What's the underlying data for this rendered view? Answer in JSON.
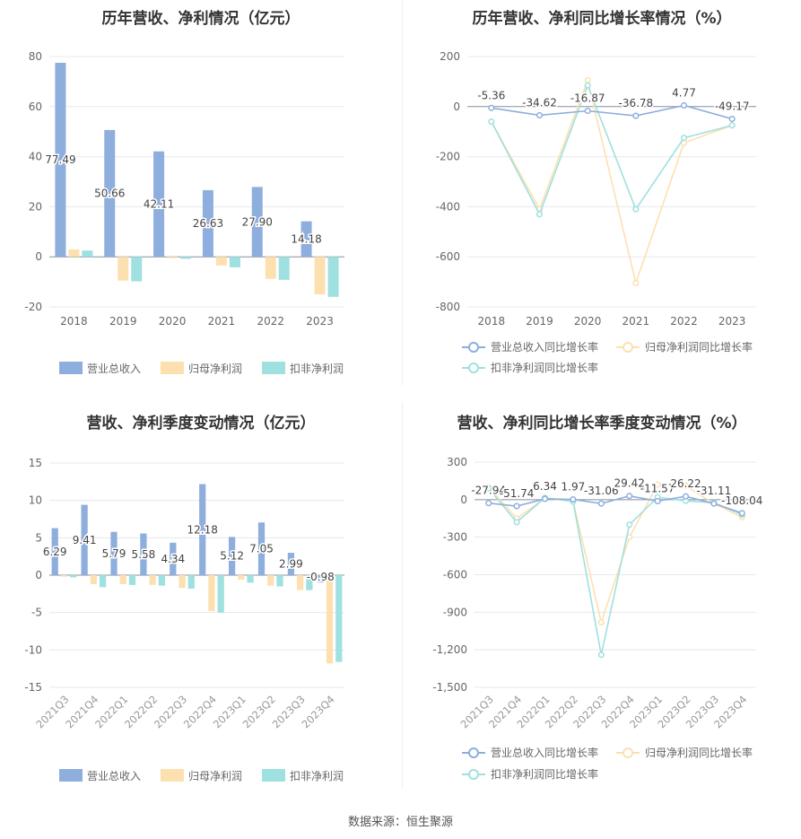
{
  "source": "数据来源：恒生聚源",
  "colors": {
    "rev": "#8eaedd",
    "np": "#fde0b0",
    "dnp": "#9fe0e0",
    "line_rev": "#8eaedd",
    "line_np": "#fde0b0",
    "line_dnp": "#9fe0e0"
  },
  "chart_data": [
    {
      "type": "bar",
      "title": "历年营收、净利情况（亿元）",
      "categories": [
        "2018",
        "2019",
        "2020",
        "2021",
        "2022",
        "2023"
      ],
      "ylim": [
        -20,
        80
      ],
      "yticks": [
        -20,
        0,
        20,
        40,
        60,
        80
      ],
      "series": [
        {
          "name": "营业总收入",
          "values": [
            77.49,
            50.66,
            42.11,
            26.63,
            27.9,
            14.18
          ],
          "labels": [
            "77.49",
            "50.66",
            "42.11",
            "26.63",
            "27.90",
            "14.18"
          ]
        },
        {
          "name": "归母净利润",
          "values": [
            3.0,
            -9.5,
            -0.5,
            -3.5,
            -8.8,
            -15.0
          ]
        },
        {
          "name": "扣非净利润",
          "values": [
            2.5,
            -9.8,
            -0.8,
            -4.2,
            -9.2,
            -16.0
          ]
        }
      ],
      "legend": "bottom",
      "grid": true
    },
    {
      "type": "line",
      "title": "历年营收、净利同比增长率情况（%）",
      "categories": [
        "2018",
        "2019",
        "2020",
        "2021",
        "2022",
        "2023"
      ],
      "ylim": [
        -800,
        200
      ],
      "yticks": [
        -800,
        -600,
        -400,
        -200,
        0,
        200
      ],
      "series": [
        {
          "name": "营业总收入同比增长率",
          "values": [
            -5.36,
            -34.62,
            -16.87,
            -36.78,
            4.77,
            -49.17
          ],
          "labels": [
            "-5.36",
            "-34.62",
            "-16.87",
            "-36.78",
            "4.77",
            "-49.17"
          ]
        },
        {
          "name": "归母净利润同比增长率",
          "values": [
            -60,
            -410,
            105,
            -705,
            -145,
            -75
          ]
        },
        {
          "name": "扣非净利润同比增长率",
          "values": [
            -60,
            -430,
            85,
            -410,
            -125,
            -75
          ]
        }
      ],
      "legend": "bottom",
      "grid": true
    },
    {
      "type": "bar",
      "title": "营收、净利季度变动情况（亿元）",
      "categories": [
        "2021Q3",
        "2021Q4",
        "2022Q1",
        "2022Q2",
        "2022Q3",
        "2022Q4",
        "2023Q1",
        "2023Q2",
        "2023Q3",
        "2023Q4"
      ],
      "ylim": [
        -15,
        15
      ],
      "yticks": [
        -15,
        -10,
        -5,
        0,
        5,
        10,
        15
      ],
      "series": [
        {
          "name": "营业总收入",
          "values": [
            6.29,
            9.41,
            5.79,
            5.58,
            4.34,
            12.18,
            5.12,
            7.05,
            2.99,
            -0.98
          ],
          "labels": [
            "6.29",
            "9.41",
            "5.79",
            "5.58",
            "4.34",
            "12.18",
            "5.12",
            "7.05",
            "2.99",
            "-0.98"
          ]
        },
        {
          "name": "归母净利润",
          "values": [
            -0.2,
            -1.2,
            -1.2,
            -1.3,
            -1.7,
            -4.8,
            -0.6,
            -1.4,
            -2.0,
            -11.8
          ]
        },
        {
          "name": "扣非净利润",
          "values": [
            -0.3,
            -1.6,
            -1.3,
            -1.4,
            -1.8,
            -5.0,
            -1.0,
            -1.5,
            -2.0,
            -11.6
          ]
        }
      ],
      "legend": "bottom",
      "grid": true
    },
    {
      "type": "line",
      "title": "营收、净利同比增长率季度变动情况（%）",
      "categories": [
        "2021Q3",
        "2021Q4",
        "2022Q1",
        "2022Q2",
        "2022Q3",
        "2022Q4",
        "2023Q1",
        "2023Q2",
        "2023Q3",
        "2023Q4"
      ],
      "ylim": [
        -1500,
        300
      ],
      "yticks": [
        -1500,
        -1200,
        -900,
        -600,
        -300,
        0,
        300
      ],
      "series": [
        {
          "name": "营业总收入同比增长率",
          "values": [
            -27.94,
            -51.74,
            6.34,
            1.97,
            -31.06,
            29.42,
            -11.57,
            26.22,
            -31.11,
            -108.04
          ],
          "labels": [
            "-27.94",
            "-51.74",
            "6.34",
            "1.97",
            "-31.06",
            "29.42",
            "-11.57",
            "26.22",
            "-31.11",
            "-108.04"
          ]
        },
        {
          "name": "归母净利润同比增长率",
          "values": [
            100,
            -150,
            10,
            -10,
            -980,
            -300,
            120,
            110,
            -30,
            -140
          ]
        },
        {
          "name": "扣非净利润同比增长率",
          "values": [
            90,
            -180,
            15,
            -15,
            -1240,
            -200,
            20,
            -10,
            -25,
            -120
          ]
        }
      ],
      "legend": "bottom",
      "grid": true
    }
  ]
}
